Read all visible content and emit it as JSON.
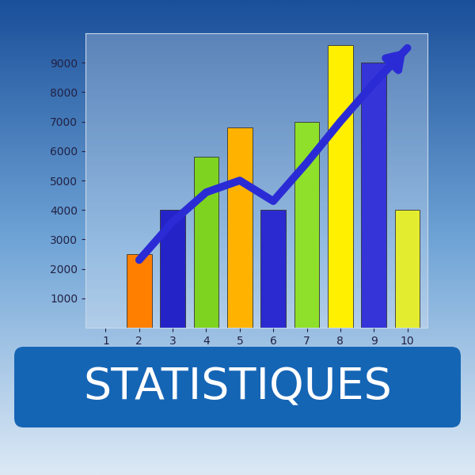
{
  "chart_data": {
    "type": "bar",
    "title": "STATISTIQUES",
    "categories": [
      "1",
      "2",
      "3",
      "4",
      "5",
      "6",
      "7",
      "8",
      "9",
      "10"
    ],
    "series": [
      {
        "type": "bar",
        "values": [
          null,
          2500,
          4000,
          5800,
          6800,
          4000,
          7000,
          9600,
          9000,
          4000
        ],
        "colors": [
          null,
          "#ff7f00",
          "#2323c8",
          "#7ed321",
          "#ffb300",
          "#2a2ad0",
          "#8fe02a",
          "#fff000",
          "#3434d8",
          "#e4ec30"
        ]
      },
      {
        "type": "line",
        "color": "#2b2bd6",
        "values": [
          null,
          2300,
          3600,
          4600,
          5000,
          4300,
          5600,
          7000,
          8300,
          9500
        ]
      }
    ],
    "ylim": [
      0,
      10000
    ],
    "yticks": [
      1000,
      2000,
      3000,
      4000,
      5000,
      6000,
      7000,
      8000,
      9000
    ],
    "grid": false
  }
}
